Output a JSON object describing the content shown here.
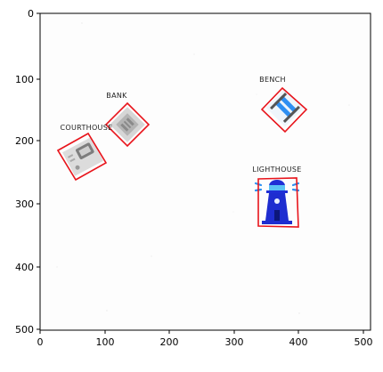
{
  "axes": {
    "x_ticks": [
      "0",
      "100",
      "200",
      "300",
      "400",
      "500"
    ],
    "y_ticks": [
      "0",
      "100",
      "200",
      "300",
      "400",
      "500"
    ],
    "xlim": [
      0,
      512
    ],
    "ylim": [
      512,
      0
    ]
  },
  "detections": [
    {
      "label": "BANK",
      "icon": "bank-icon",
      "color": "#e8141b"
    },
    {
      "label": "BENCH",
      "icon": "bench-icon",
      "color": "#e8141b"
    },
    {
      "label": "COURTHOUSE",
      "icon": "courthouse-icon",
      "color": "#e8141b"
    },
    {
      "label": "LIGHTHOUSE",
      "icon": "lighthouse-icon",
      "color": "#e8141b"
    }
  ]
}
